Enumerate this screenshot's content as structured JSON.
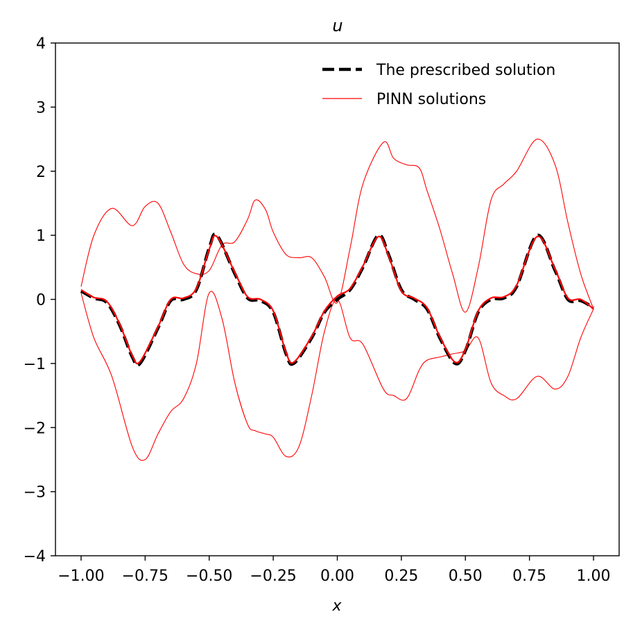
{
  "chart_data": {
    "type": "line",
    "title": "u",
    "xlabel": "x",
    "ylabel": "",
    "xlim": [
      -1.1,
      1.1
    ],
    "ylim": [
      -4,
      4
    ],
    "xticks": [
      -1.0,
      -0.75,
      -0.5,
      -0.25,
      0.0,
      0.25,
      0.5,
      0.75,
      1.0
    ],
    "xtick_labels": [
      "−1.00",
      "−0.75",
      "−0.50",
      "−0.25",
      "0.00",
      "0.25",
      "0.50",
      "0.75",
      "1.00"
    ],
    "yticks": [
      -4,
      -3,
      -2,
      -1,
      0,
      1,
      2,
      3,
      4
    ],
    "ytick_labels": [
      "−4",
      "−3",
      "−2",
      "−1",
      "0",
      "1",
      "2",
      "3",
      "4"
    ],
    "grid": false,
    "legend_position": "top-right",
    "legend": [
      {
        "label": "The prescribed solution",
        "color": "#000000",
        "style": "dashed"
      },
      {
        "label": "PINN solutions",
        "color": "#ff0000",
        "style": "solid"
      }
    ],
    "series": [
      {
        "name": "The prescribed solution",
        "color": "#000000",
        "style": "dashed",
        "x": [
          -1.0,
          -0.95,
          -0.9,
          -0.85,
          -0.8,
          -0.77,
          -0.7,
          -0.65,
          -0.6,
          -0.55,
          -0.5,
          -0.47,
          -0.4,
          -0.35,
          -0.3,
          -0.25,
          -0.2,
          -0.17,
          -0.1,
          -0.05,
          0.0,
          0.05,
          0.1,
          0.16,
          0.2,
          0.25,
          0.3,
          0.35,
          0.4,
          0.46,
          0.5,
          0.55,
          0.6,
          0.65,
          0.7,
          0.78,
          0.85,
          0.9,
          0.95,
          1.0
        ],
        "y": [
          0.13,
          0.02,
          -0.05,
          -0.4,
          -0.9,
          -1.0,
          -0.45,
          -0.02,
          0.0,
          0.15,
          0.8,
          1.0,
          0.4,
          0.02,
          -0.02,
          -0.2,
          -0.85,
          -1.0,
          -0.6,
          -0.2,
          0.0,
          0.15,
          0.5,
          1.0,
          0.7,
          0.15,
          0.0,
          -0.15,
          -0.6,
          -1.0,
          -0.8,
          -0.2,
          0.0,
          0.02,
          0.2,
          1.0,
          0.45,
          0.0,
          -0.02,
          -0.13
        ]
      },
      {
        "name": "PINN solutions",
        "color": "#ff0000",
        "style": "solid",
        "x": [
          -1.0,
          -0.95,
          -0.9,
          -0.85,
          -0.8,
          -0.77,
          -0.7,
          -0.65,
          -0.6,
          -0.55,
          -0.5,
          -0.47,
          -0.4,
          -0.35,
          -0.3,
          -0.25,
          -0.2,
          -0.17,
          -0.1,
          -0.05,
          0.0,
          0.05,
          0.1,
          0.16,
          0.2,
          0.25,
          0.3,
          0.35,
          0.4,
          0.46,
          0.5,
          0.55,
          0.6,
          0.65,
          0.7,
          0.78,
          0.85,
          0.9,
          0.95,
          1.0
        ],
        "y": [
          0.15,
          0.03,
          -0.03,
          -0.38,
          -0.88,
          -0.97,
          -0.43,
          0.0,
          0.02,
          0.17,
          0.78,
          0.98,
          0.42,
          0.04,
          0.0,
          -0.18,
          -0.83,
          -0.98,
          -0.58,
          -0.18,
          0.05,
          0.17,
          0.52,
          0.98,
          0.68,
          0.13,
          0.02,
          -0.13,
          -0.58,
          -0.98,
          -0.78,
          -0.18,
          0.02,
          0.04,
          0.22,
          0.98,
          0.47,
          0.02,
          0.0,
          -0.15
        ]
      },
      {
        "name": "PINN solutions",
        "color": "#ff0000",
        "style": "solid",
        "x": [
          -1.0,
          -0.95,
          -0.88,
          -0.8,
          -0.75,
          -0.7,
          -0.65,
          -0.6,
          -0.55,
          -0.5,
          -0.45,
          -0.4,
          -0.35,
          -0.32,
          -0.28,
          -0.25,
          -0.2,
          -0.15,
          -0.1,
          -0.05,
          0.0,
          0.05,
          0.1,
          0.18,
          0.22,
          0.27,
          0.32,
          0.35,
          0.4,
          0.45,
          0.5,
          0.55,
          0.6,
          0.65,
          0.7,
          0.78,
          0.85,
          0.9,
          0.95,
          1.0
        ],
        "y": [
          0.2,
          1.0,
          1.42,
          1.15,
          1.45,
          1.5,
          1.05,
          0.55,
          0.4,
          0.45,
          0.85,
          0.9,
          1.25,
          1.55,
          1.4,
          1.05,
          0.7,
          0.65,
          0.65,
          0.35,
          -0.05,
          0.8,
          1.8,
          2.45,
          2.2,
          2.1,
          2.05,
          1.7,
          1.1,
          0.4,
          -0.2,
          0.5,
          1.55,
          1.8,
          2.0,
          2.5,
          2.1,
          1.2,
          0.4,
          -0.15
        ]
      },
      {
        "name": "PINN solutions",
        "color": "#ff0000",
        "style": "solid",
        "x": [
          -1.0,
          -0.95,
          -0.88,
          -0.8,
          -0.75,
          -0.7,
          -0.65,
          -0.6,
          -0.55,
          -0.5,
          -0.45,
          -0.4,
          -0.35,
          -0.32,
          -0.28,
          -0.25,
          -0.2,
          -0.15,
          -0.1,
          -0.05,
          0.0,
          0.05,
          0.1,
          0.18,
          0.22,
          0.27,
          0.32,
          0.35,
          0.4,
          0.45,
          0.5,
          0.55,
          0.6,
          0.65,
          0.7,
          0.78,
          0.85,
          0.9,
          0.95,
          1.0
        ],
        "y": [
          0.1,
          -0.6,
          -1.2,
          -2.3,
          -2.5,
          -2.1,
          -1.75,
          -1.55,
          -1.0,
          0.1,
          -0.3,
          -1.3,
          -1.95,
          -2.05,
          -2.1,
          -2.15,
          -2.45,
          -2.3,
          -1.5,
          -0.5,
          0.0,
          -0.6,
          -0.7,
          -1.4,
          -1.5,
          -1.55,
          -1.1,
          -0.95,
          -0.9,
          -0.85,
          -0.8,
          -0.6,
          -1.3,
          -1.5,
          -1.55,
          -1.2,
          -1.4,
          -1.2,
          -0.6,
          -0.15
        ]
      }
    ]
  }
}
